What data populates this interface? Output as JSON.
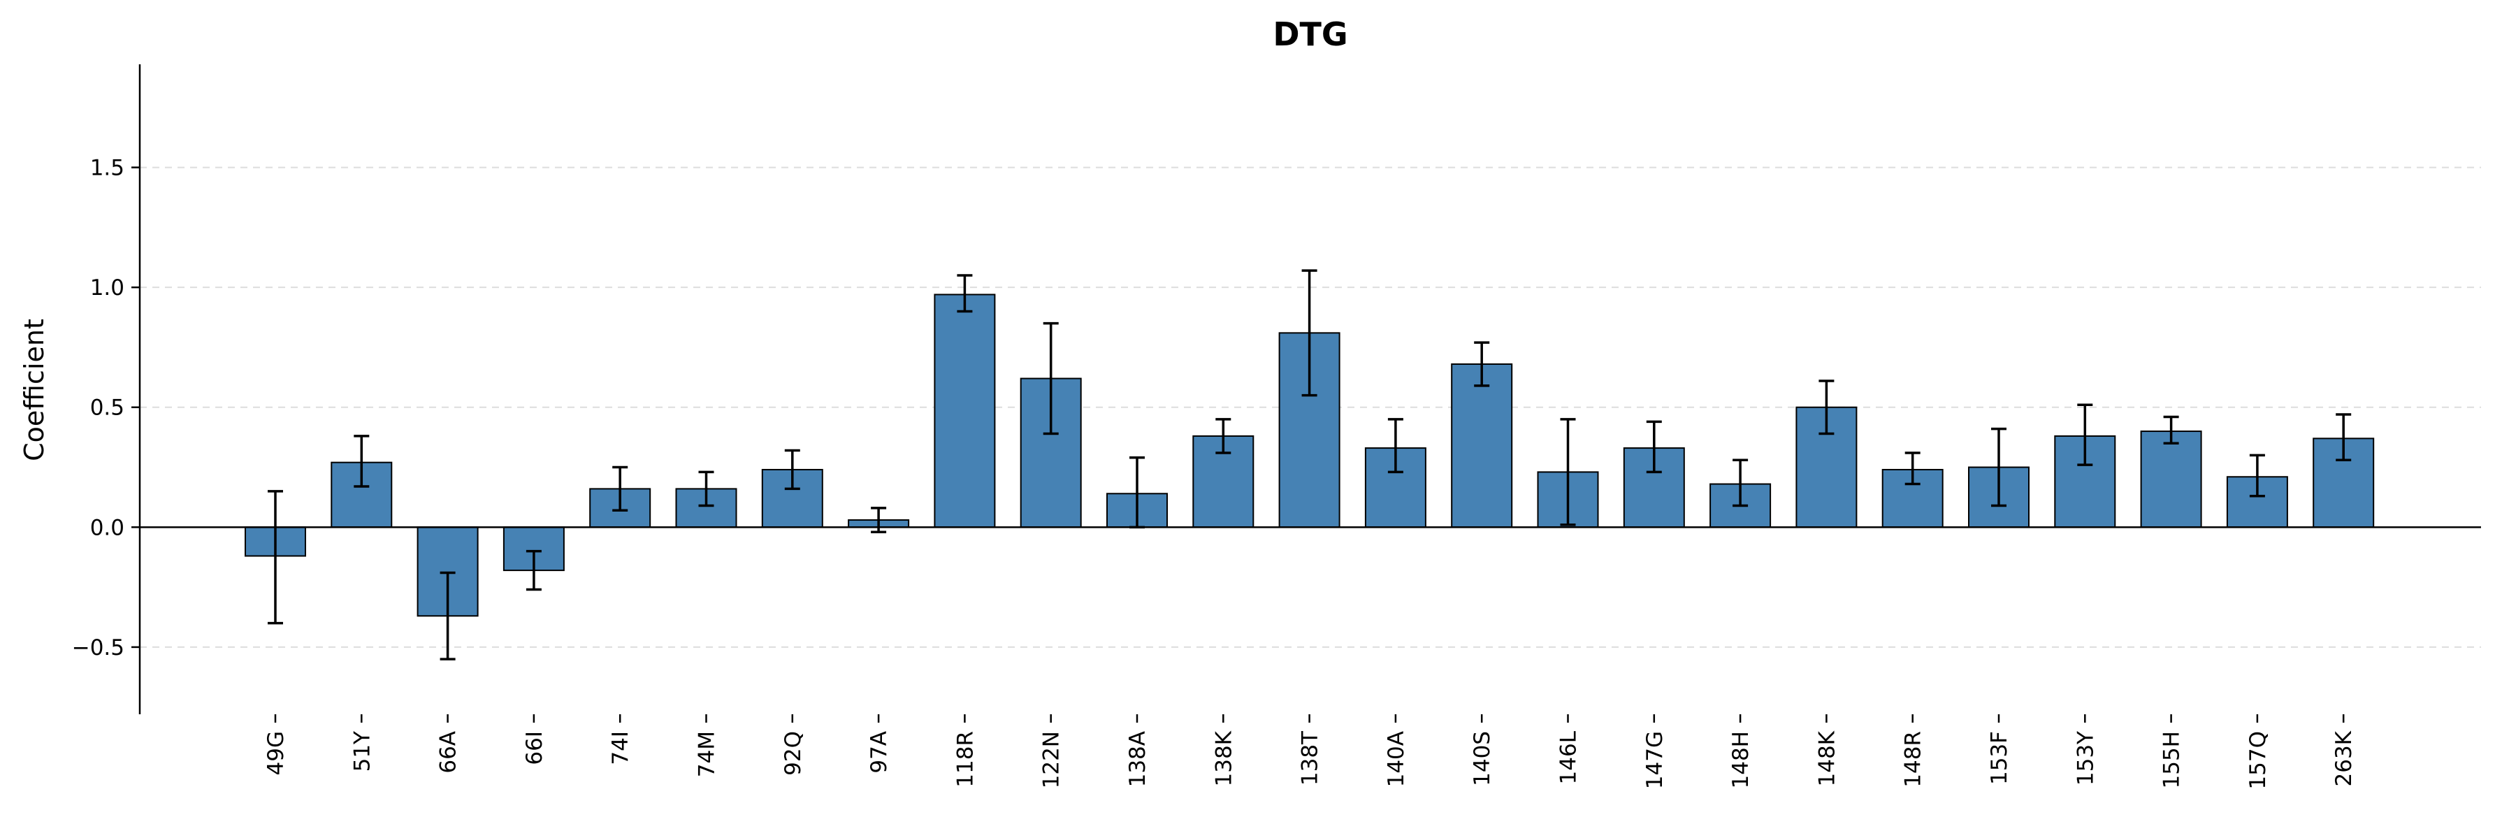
{
  "chart_data": {
    "type": "bar",
    "title": "DTG",
    "ylabel": "Coefficient",
    "xlabel": "",
    "ylim": [
      -0.78,
      1.93
    ],
    "yticks": [
      -0.5,
      0.0,
      0.5,
      1.0,
      1.5
    ],
    "ytick_labels": [
      "−0.5",
      "0.0",
      "0.5",
      "1.0",
      "1.5"
    ],
    "grid": "y dashed",
    "bar_color": "#4682b4",
    "categories": [
      "49G",
      "51Y",
      "66A",
      "66I",
      "74I",
      "74M",
      "92Q",
      "97A",
      "118R",
      "122N",
      "138A",
      "138K",
      "138T",
      "140A",
      "140S",
      "146L",
      "147G",
      "148H",
      "148K",
      "148R",
      "153F",
      "153Y",
      "155H",
      "157Q",
      "263K"
    ],
    "values": [
      -0.12,
      0.27,
      -0.37,
      -0.18,
      0.16,
      0.16,
      0.24,
      0.03,
      0.97,
      0.62,
      0.14,
      0.38,
      0.81,
      0.33,
      0.68,
      0.23,
      0.33,
      0.18,
      0.5,
      0.24,
      0.25,
      0.38,
      0.4,
      0.21,
      0.37
    ],
    "error_low": [
      -0.4,
      0.17,
      -0.55,
      -0.26,
      0.07,
      0.09,
      0.16,
      -0.02,
      0.9,
      0.39,
      0.0,
      0.31,
      0.55,
      0.23,
      0.59,
      0.01,
      0.23,
      0.09,
      0.39,
      0.18,
      0.09,
      0.26,
      0.35,
      0.13,
      0.28
    ],
    "error_high": [
      0.15,
      0.38,
      -0.19,
      -0.1,
      0.25,
      0.23,
      0.32,
      0.08,
      1.05,
      0.85,
      0.29,
      0.45,
      1.07,
      0.45,
      0.77,
      0.45,
      0.44,
      0.28,
      0.61,
      0.31,
      0.41,
      0.51,
      0.46,
      0.3,
      0.47
    ]
  }
}
